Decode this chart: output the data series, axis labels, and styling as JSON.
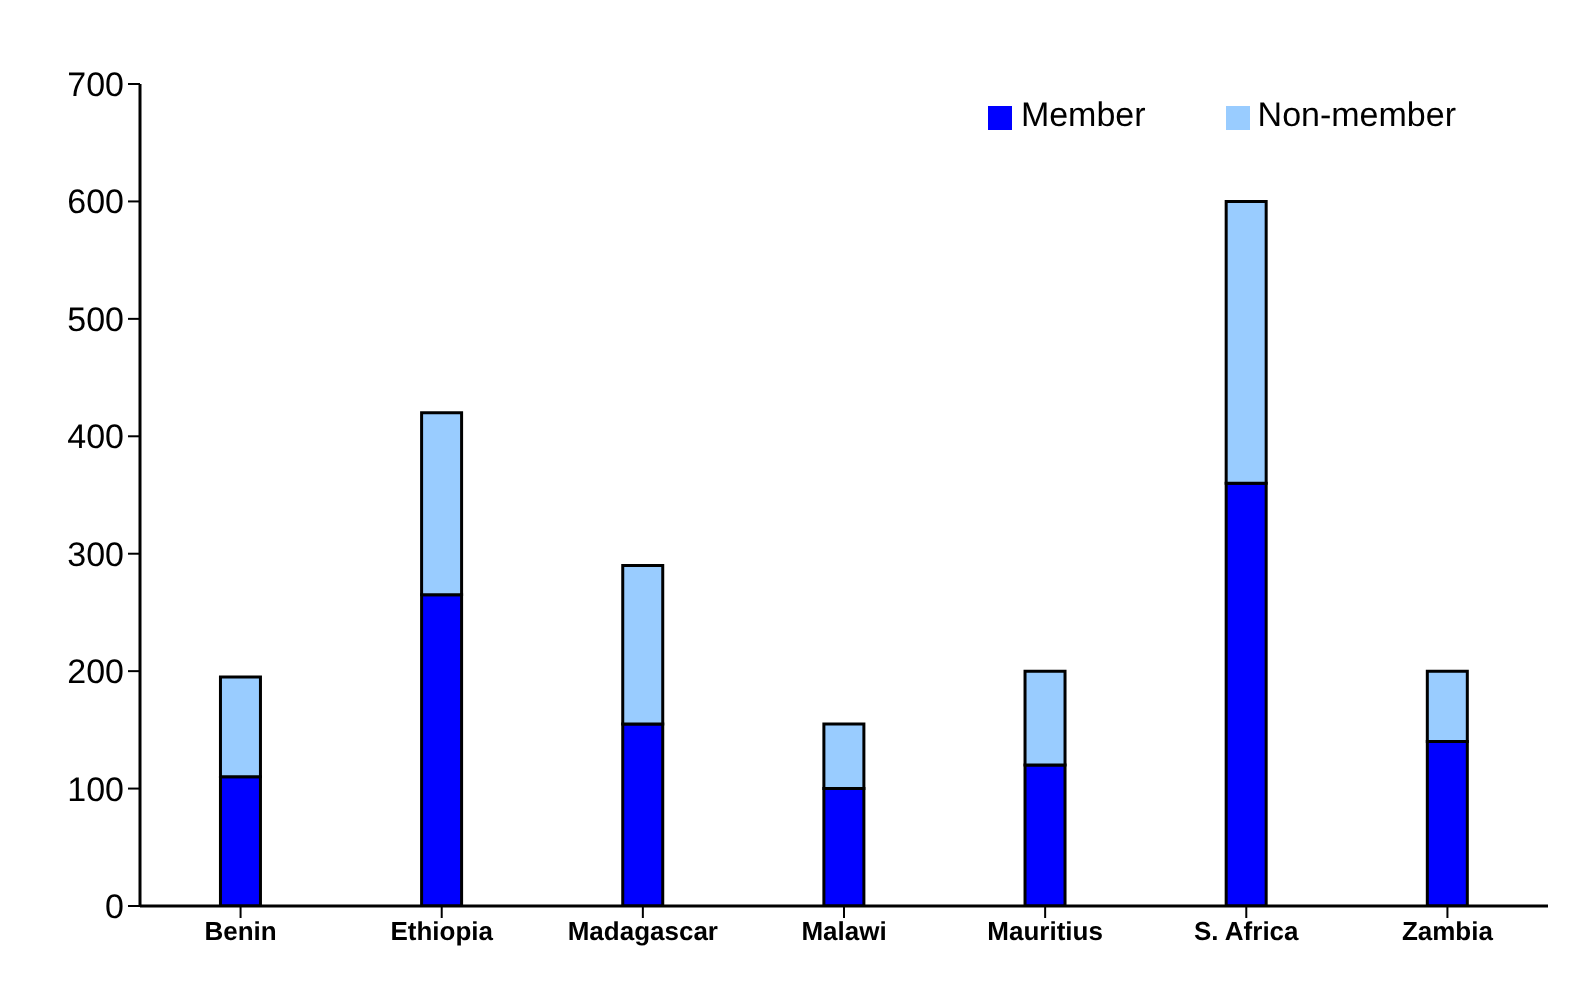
{
  "chart_data": {
    "type": "bar",
    "stacked": true,
    "categories": [
      "Benin",
      "Ethiopia",
      "Madagascar",
      "Malawi",
      "Mauritius",
      "S. Africa",
      "Zambia"
    ],
    "series": [
      {
        "name": "Member",
        "color": "#0000ff",
        "values": [
          110,
          265,
          155,
          100,
          120,
          360,
          140
        ]
      },
      {
        "name": "Non-member",
        "color": "#99ccff",
        "values": [
          85,
          155,
          135,
          55,
          80,
          240,
          60
        ]
      }
    ],
    "ylim": [
      0,
      700
    ],
    "yticks": [
      0,
      100,
      200,
      300,
      400,
      500,
      600,
      700
    ],
    "grid": false,
    "legend": "top right"
  }
}
